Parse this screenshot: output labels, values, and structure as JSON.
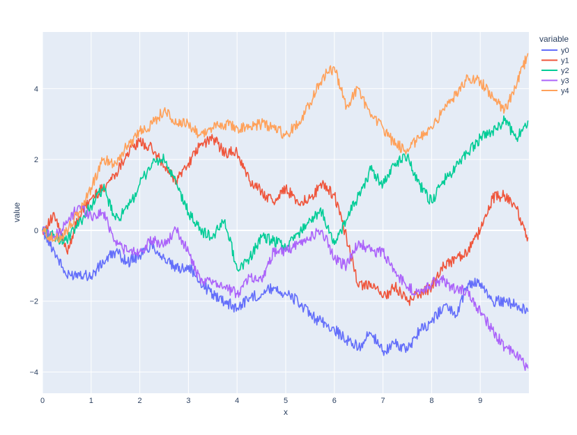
{
  "chart_data": {
    "type": "line",
    "xlabel": "x",
    "ylabel": "value",
    "xlim": [
      0,
      10
    ],
    "ylim": [
      -4.6,
      5.6
    ],
    "x_ticks": [
      0,
      1,
      2,
      3,
      4,
      5,
      6,
      7,
      8,
      9
    ],
    "y_ticks": [
      -4,
      -2,
      0,
      2,
      4
    ],
    "grid": true,
    "legend": {
      "title": "variable",
      "position": "top-right outside"
    },
    "x": [
      0,
      0.25,
      0.5,
      0.75,
      1,
      1.25,
      1.5,
      1.75,
      2,
      2.25,
      2.5,
      2.75,
      3,
      3.25,
      3.5,
      3.75,
      4,
      4.25,
      4.5,
      4.75,
      5,
      5.25,
      5.5,
      5.75,
      6,
      6.25,
      6.5,
      6.75,
      7,
      7.25,
      7.5,
      7.75,
      8,
      8.25,
      8.5,
      8.75,
      9,
      9.25,
      9.5,
      9.75,
      9.98
    ],
    "series": [
      {
        "name": "y0",
        "color": "#636efa",
        "values": [
          0.0,
          -0.6,
          -1.3,
          -1.2,
          -1.3,
          -0.9,
          -0.6,
          -0.9,
          -0.7,
          -0.4,
          -0.8,
          -1.1,
          -1.0,
          -1.5,
          -1.8,
          -2.0,
          -2.2,
          -1.9,
          -1.8,
          -1.6,
          -1.8,
          -2.0,
          -2.4,
          -2.6,
          -2.8,
          -3.1,
          -3.3,
          -2.9,
          -3.4,
          -3.2,
          -3.4,
          -2.8,
          -2.6,
          -2.1,
          -2.4,
          -1.5,
          -1.5,
          -2.0,
          -2.0,
          -2.1,
          -2.3
        ]
      },
      {
        "name": "y1",
        "color": "#ef553b",
        "values": [
          0.0,
          0.4,
          -0.6,
          0.4,
          0.9,
          1.2,
          1.6,
          2.2,
          2.5,
          2.3,
          1.8,
          1.4,
          1.9,
          2.4,
          2.6,
          2.2,
          2.2,
          1.4,
          1.1,
          0.8,
          1.2,
          0.8,
          0.9,
          1.3,
          1.0,
          -0.2,
          -1.6,
          -1.5,
          -1.9,
          -1.6,
          -2.0,
          -1.8,
          -1.6,
          -1.0,
          -0.8,
          -0.6,
          0.0,
          0.9,
          1.0,
          0.6,
          -0.2
        ]
      },
      {
        "name": "y2",
        "color": "#00cc96",
        "values": [
          0.0,
          -0.2,
          -0.3,
          0.2,
          0.7,
          1.2,
          0.3,
          0.6,
          1.3,
          1.9,
          2.0,
          1.3,
          0.5,
          0.0,
          -0.2,
          0.3,
          -1.1,
          -0.8,
          -0.2,
          -0.3,
          -0.5,
          -0.1,
          0.3,
          0.5,
          -0.4,
          0.3,
          1.0,
          1.7,
          1.3,
          1.9,
          2.1,
          1.3,
          0.8,
          1.4,
          1.8,
          2.2,
          2.6,
          2.8,
          3.1,
          2.6,
          3.1
        ]
      },
      {
        "name": "y3",
        "color": "#ab63fa",
        "values": [
          0.0,
          -0.2,
          0.2,
          0.7,
          0.4,
          0.5,
          -0.3,
          -0.6,
          -0.6,
          -0.3,
          -0.4,
          0.0,
          -0.6,
          -1.5,
          -1.4,
          -1.6,
          -1.8,
          -1.3,
          -1.4,
          -0.6,
          -0.6,
          -0.4,
          -0.2,
          0.0,
          -0.8,
          -1.0,
          -0.3,
          -0.6,
          -0.6,
          -1.2,
          -1.6,
          -1.8,
          -1.5,
          -1.4,
          -1.7,
          -1.7,
          -2.3,
          -2.8,
          -3.3,
          -3.5,
          -3.9
        ]
      },
      {
        "name": "y4",
        "color": "#ffa15a",
        "values": [
          0.0,
          -0.3,
          0.0,
          0.5,
          1.2,
          2.0,
          1.9,
          2.4,
          2.8,
          3.0,
          3.4,
          3.0,
          3.0,
          2.7,
          2.9,
          3.0,
          2.9,
          2.9,
          3.0,
          2.9,
          2.7,
          3.0,
          3.6,
          4.3,
          4.6,
          3.5,
          4.0,
          3.2,
          2.9,
          2.4,
          2.3,
          2.6,
          2.9,
          3.4,
          3.8,
          4.3,
          4.2,
          3.8,
          3.4,
          4.1,
          5.0
        ]
      }
    ]
  }
}
